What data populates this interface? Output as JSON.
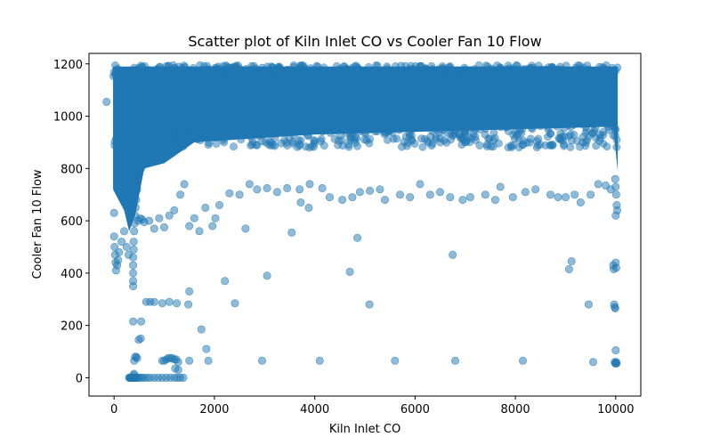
{
  "chart_data": {
    "type": "scatter",
    "title": "Scatter plot of Kiln Inlet CO vs Cooler Fan 10 Flow",
    "xlabel": "Kiln Inlet CO",
    "ylabel": "Cooler Fan 10 Flow",
    "xlim": [
      -500,
      10500
    ],
    "ylim": [
      -70,
      1240
    ],
    "xticks": [
      0,
      2000,
      4000,
      6000,
      8000,
      10000
    ],
    "yticks": [
      0,
      200,
      400,
      600,
      800,
      1000,
      1200
    ],
    "xtick_labels": [
      "0",
      "2000",
      "4000",
      "6000",
      "8000",
      "10000"
    ],
    "ytick_labels": [
      "0",
      "200",
      "400",
      "600",
      "800",
      "1000",
      "1200"
    ],
    "grid": false,
    "point_color": "#1f77b4",
    "point_alpha": 0.5,
    "series": [
      {
        "points": [
          [
            -150,
            1055
          ],
          [
            0,
            630
          ],
          [
            0,
            540
          ],
          [
            10,
            500
          ],
          [
            20,
            470
          ],
          [
            30,
            440
          ],
          [
            40,
            410
          ],
          [
            60,
            430
          ],
          [
            80,
            450
          ],
          [
            100,
            480
          ],
          [
            150,
            520
          ],
          [
            200,
            560
          ],
          [
            250,
            500
          ],
          [
            290,
            470
          ],
          [
            300,
            0
          ],
          [
            310,
            0
          ],
          [
            320,
            0
          ],
          [
            330,
            0
          ],
          [
            340,
            0
          ],
          [
            350,
            0
          ],
          [
            360,
            0
          ],
          [
            370,
            0
          ],
          [
            380,
            0
          ],
          [
            390,
            0
          ],
          [
            400,
            0
          ],
          [
            410,
            0
          ],
          [
            420,
            0
          ],
          [
            430,
            0
          ],
          [
            440,
            0
          ],
          [
            460,
            0
          ],
          [
            480,
            0
          ],
          [
            520,
            0
          ],
          [
            560,
            0
          ],
          [
            600,
            0
          ],
          [
            660,
            0
          ],
          [
            720,
            0
          ],
          [
            800,
            0
          ],
          [
            880,
            0
          ],
          [
            960,
            0
          ],
          [
            1040,
            0
          ],
          [
            1120,
            0
          ],
          [
            1200,
            0
          ],
          [
            1260,
            0
          ],
          [
            1320,
            0
          ],
          [
            1380,
            0
          ],
          [
            380,
            0
          ],
          [
            390,
            10
          ],
          [
            400,
            15
          ],
          [
            420,
            80
          ],
          [
            440,
            80
          ],
          [
            460,
            75
          ],
          [
            400,
            65
          ],
          [
            380,
            215
          ],
          [
            540,
            215
          ],
          [
            490,
            145
          ],
          [
            530,
            150
          ],
          [
            640,
            290
          ],
          [
            720,
            290
          ],
          [
            800,
            290
          ],
          [
            960,
            285
          ],
          [
            1100,
            290
          ],
          [
            1500,
            330
          ],
          [
            1480,
            280
          ],
          [
            1250,
            285
          ],
          [
            1740,
            185
          ],
          [
            2210,
            370
          ],
          [
            2410,
            285
          ],
          [
            3050,
            390
          ],
          [
            2950,
            65
          ],
          [
            4100,
            65
          ],
          [
            5600,
            65
          ],
          [
            6800,
            65
          ],
          [
            8150,
            65
          ],
          [
            9550,
            60
          ],
          [
            1500,
            65
          ],
          [
            1880,
            65
          ],
          [
            1840,
            110
          ],
          [
            960,
            65
          ],
          [
            1000,
            65
          ],
          [
            1040,
            70
          ],
          [
            1080,
            75
          ],
          [
            1120,
            75
          ],
          [
            1160,
            75
          ],
          [
            1200,
            70
          ],
          [
            1240,
            70
          ],
          [
            1280,
            60
          ],
          [
            1220,
            35
          ],
          [
            1280,
            30
          ],
          [
            380,
            350
          ],
          [
            380,
            370
          ],
          [
            380,
            400
          ],
          [
            380,
            430
          ],
          [
            380,
            460
          ],
          [
            390,
            490
          ],
          [
            390,
            520
          ],
          [
            400,
            560
          ],
          [
            410,
            590
          ],
          [
            420,
            620
          ],
          [
            430,
            650
          ],
          [
            440,
            680
          ],
          [
            460,
            720
          ],
          [
            480,
            760
          ],
          [
            500,
            780
          ],
          [
            540,
            800
          ],
          [
            580,
            820
          ],
          [
            620,
            840
          ],
          [
            480,
            600
          ],
          [
            520,
            610
          ],
          [
            560,
            605
          ],
          [
            600,
            595
          ],
          [
            700,
            600
          ],
          [
            800,
            570
          ],
          [
            900,
            610
          ],
          [
            1000,
            575
          ],
          [
            1100,
            620
          ],
          [
            1200,
            640
          ],
          [
            1320,
            700
          ],
          [
            1400,
            740
          ],
          [
            1500,
            580
          ],
          [
            1600,
            610
          ],
          [
            1700,
            560
          ],
          [
            1820,
            650
          ],
          [
            1960,
            580
          ],
          [
            2020,
            610
          ],
          [
            2100,
            660
          ],
          [
            2620,
            570
          ],
          [
            3540,
            555
          ],
          [
            3720,
            670
          ],
          [
            3880,
            650
          ],
          [
            4850,
            535
          ],
          [
            4700,
            405
          ],
          [
            5090,
            280
          ],
          [
            6750,
            470
          ],
          [
            9120,
            445
          ],
          [
            9070,
            415
          ],
          [
            9460,
            280
          ],
          [
            9950,
            430
          ],
          [
            9960,
            415
          ],
          [
            9970,
            280
          ],
          [
            9980,
            270
          ],
          [
            9990,
            265
          ],
          [
            10000,
            440
          ],
          [
            10010,
            420
          ],
          [
            10000,
            105
          ],
          [
            9980,
            60
          ],
          [
            9990,
            55
          ],
          [
            10000,
            55
          ],
          [
            10010,
            60
          ],
          [
            10020,
            55
          ],
          [
            9990,
            760
          ],
          [
            10000,
            730
          ],
          [
            10010,
            700
          ],
          [
            10020,
            660
          ],
          [
            10030,
            640
          ],
          [
            10000,
            620
          ],
          [
            9900,
            720
          ],
          [
            9800,
            735
          ],
          [
            9650,
            740
          ],
          [
            9500,
            700
          ],
          [
            9300,
            670
          ],
          [
            9180,
            700
          ],
          [
            9000,
            690
          ],
          [
            8850,
            690
          ],
          [
            8700,
            700
          ],
          [
            8400,
            720
          ],
          [
            8200,
            710
          ],
          [
            7950,
            690
          ],
          [
            7700,
            730
          ],
          [
            7600,
            680
          ],
          [
            7400,
            700
          ],
          [
            7100,
            690
          ],
          [
            6950,
            680
          ],
          [
            6700,
            690
          ],
          [
            6500,
            710
          ],
          [
            6300,
            700
          ],
          [
            6100,
            740
          ],
          [
            5900,
            690
          ],
          [
            5700,
            700
          ],
          [
            5400,
            680
          ],
          [
            5300,
            720
          ],
          [
            5100,
            715
          ],
          [
            4900,
            710
          ],
          [
            4750,
            690
          ],
          [
            4550,
            680
          ],
          [
            4300,
            690
          ],
          [
            4150,
            725
          ],
          [
            3900,
            740
          ],
          [
            3700,
            720
          ],
          [
            3450,
            725
          ],
          [
            3250,
            710
          ],
          [
            3050,
            725
          ],
          [
            2850,
            720
          ],
          [
            2700,
            740
          ],
          [
            2500,
            700
          ],
          [
            2300,
            705
          ]
        ]
      }
    ]
  }
}
